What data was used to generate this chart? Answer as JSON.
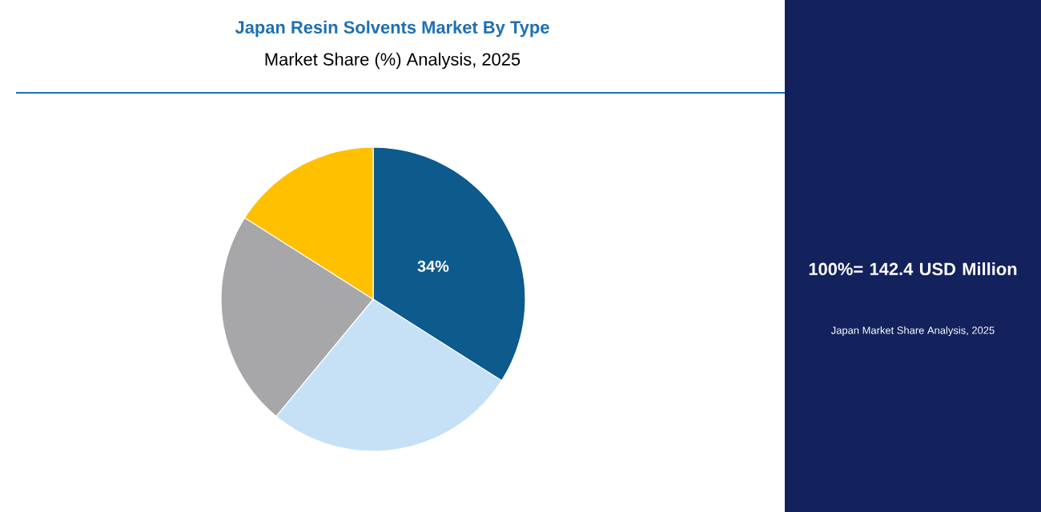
{
  "chart_data": {
    "type": "pie",
    "title": "Japan Resin Solvents Market By Type",
    "subtitle": "Market Share (%) Analysis, 2025",
    "categories": [
      null,
      null,
      null,
      null
    ],
    "values": [
      34,
      27,
      23,
      16
    ],
    "colors": [
      "#0d5a8c",
      "#c6e1f6",
      "#a7a7a9",
      "#ffc000"
    ],
    "value_labels": [
      "34%",
      null,
      null,
      null
    ],
    "annotations": [
      "100%= 142.4 USD Million",
      "Japan Market Share Analysis, 2025"
    ]
  }
}
